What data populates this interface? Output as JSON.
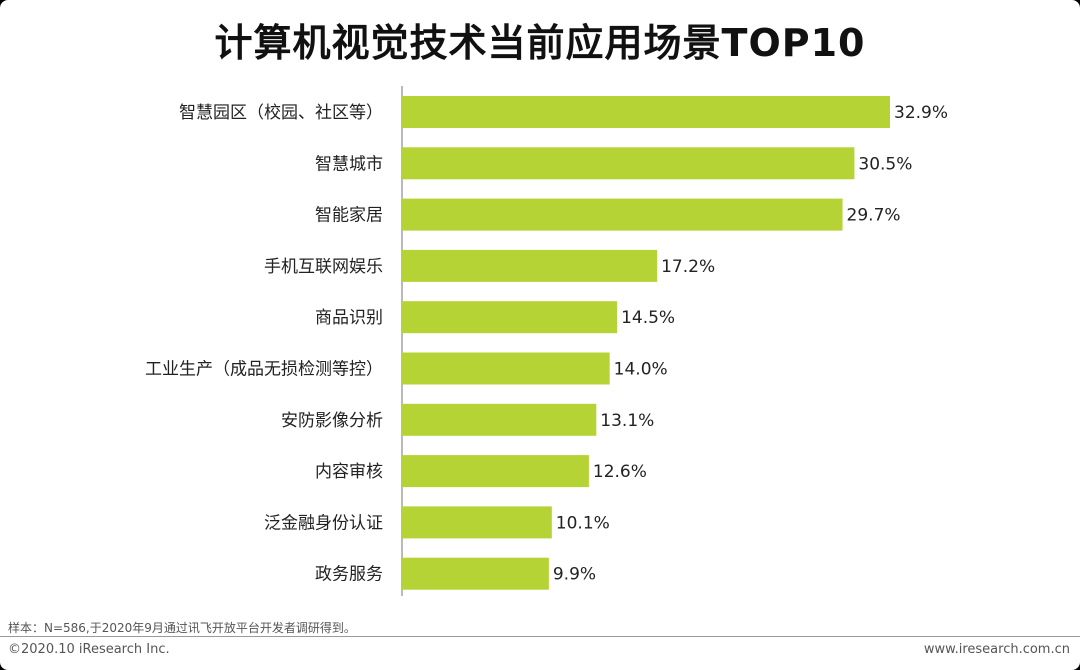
{
  "chart_data": {
    "type": "bar",
    "orientation": "horizontal",
    "title": "计算机视觉技术当前应用场景TOP10",
    "categories": [
      "智慧园区（校园、社区等）",
      "智慧城市",
      "智能家居",
      "手机互联网娱乐",
      "商品识别",
      "工业生产（成品无损检测等控）",
      "安防影像分析",
      "内容审核",
      "泛金融身份认证",
      "政务服务"
    ],
    "values": [
      32.9,
      30.5,
      29.7,
      17.2,
      14.5,
      14.0,
      13.1,
      12.6,
      10.1,
      9.9
    ],
    "value_labels": [
      "32.9%",
      "30.5%",
      "29.7%",
      "17.2%",
      "14.5%",
      "14.0%",
      "13.1%",
      "12.6%",
      "10.1%",
      "9.9%"
    ],
    "xlim": [
      0,
      32.9
    ],
    "grid": false,
    "bar_color": "#b5d334"
  },
  "footer": {
    "note": "样本：N=586,于2020年9月通过讯飞开放平台开发者调研得到。",
    "copyright": "©2020.10 iResearch Inc.",
    "website": "www.iresearch.com.cn"
  }
}
